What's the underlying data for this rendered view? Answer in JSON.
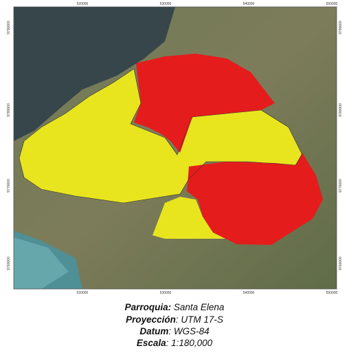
{
  "map": {
    "top_labels": [
      "520000",
      "530000",
      "540000",
      "550000"
    ],
    "bottom_labels": [
      "520000",
      "530000",
      "540000",
      "550000"
    ],
    "left_labels": [
      "9790000",
      "9780000",
      "9770000",
      "9760000"
    ],
    "right_labels": [
      "9790000",
      "9780000",
      "9770000",
      "9760000"
    ]
  },
  "caption": [
    {
      "label": "Parroquia:",
      "value": "Santa Elena"
    },
    {
      "label": "Proyección",
      "value": ": UTM 17-S"
    },
    {
      "label": "Datum",
      "value": ": WGS-84"
    },
    {
      "label": "Escala",
      "value": ": 1:180,000"
    }
  ]
}
